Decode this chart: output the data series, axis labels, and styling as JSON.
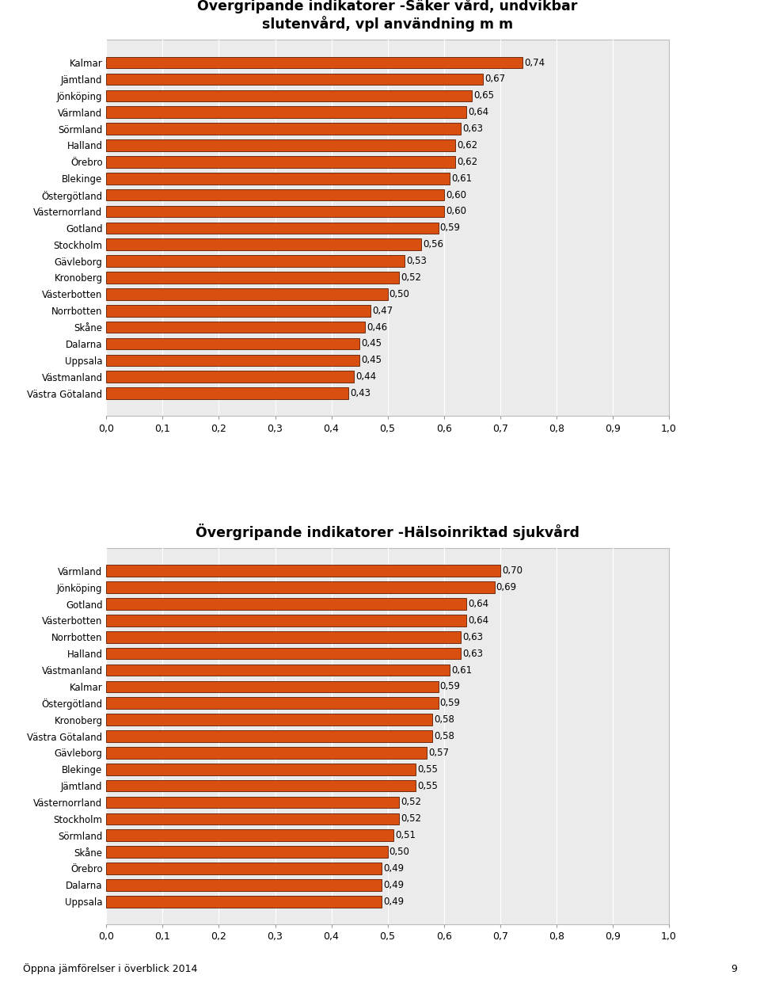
{
  "chart1": {
    "title": "Övergripande indikatorer -Säker vård, undvikbar\nslutenvård, vpl användning m m",
    "categories": [
      "Kalmar",
      "Jämtland",
      "Jönköping",
      "Värmland",
      "Sörmland",
      "Halland",
      "Örebro",
      "Blekinge",
      "Östergötland",
      "Västernorrland",
      "Gotland",
      "Stockholm",
      "Gävleborg",
      "Kronoberg",
      "Västerbotten",
      "Norrbotten",
      "Skåne",
      "Dalarna",
      "Uppsala",
      "Västmanland",
      "Västra Götaland"
    ],
    "values": [
      0.74,
      0.67,
      0.65,
      0.64,
      0.63,
      0.62,
      0.62,
      0.61,
      0.6,
      0.6,
      0.59,
      0.56,
      0.53,
      0.52,
      0.5,
      0.47,
      0.46,
      0.45,
      0.45,
      0.44,
      0.43
    ],
    "xlim": [
      0.0,
      1.0
    ],
    "xticks": [
      0.0,
      0.1,
      0.2,
      0.3,
      0.4,
      0.5,
      0.6,
      0.7,
      0.8,
      0.9,
      1.0
    ],
    "xticklabels": [
      "0,0",
      "0,1",
      "0,2",
      "0,3",
      "0,4",
      "0,5",
      "0,6",
      "0,7",
      "0,8",
      "0,9",
      "1,0"
    ]
  },
  "chart2": {
    "title": "Övergripande indikatorer -Hälsoinriktad sjukvård",
    "categories": [
      "Värmland",
      "Jönköping",
      "Gotland",
      "Västerbotten",
      "Norrbotten",
      "Halland",
      "Västmanland",
      "Kalmar",
      "Östergötland",
      "Kronoberg",
      "Västra Götaland",
      "Gävleborg",
      "Blekinge",
      "Jämtland",
      "Västernorrland",
      "Stockholm",
      "Sörmland",
      "Skåne",
      "Örebro",
      "Dalarna",
      "Uppsala"
    ],
    "values": [
      0.7,
      0.69,
      0.64,
      0.64,
      0.63,
      0.63,
      0.61,
      0.59,
      0.59,
      0.58,
      0.58,
      0.57,
      0.55,
      0.55,
      0.52,
      0.52,
      0.51,
      0.5,
      0.49,
      0.49,
      0.49
    ],
    "xlim": [
      0.0,
      1.0
    ],
    "xticks": [
      0.0,
      0.1,
      0.2,
      0.3,
      0.4,
      0.5,
      0.6,
      0.7,
      0.8,
      0.9,
      1.0
    ],
    "xticklabels": [
      "0,0",
      "0,1",
      "0,2",
      "0,3",
      "0,4",
      "0,5",
      "0,6",
      "0,7",
      "0,8",
      "0,9",
      "1,0"
    ]
  },
  "bar_color": "#D94F10",
  "bar_edge_color": "#5C1A00",
  "bar_linewidth": 0.6,
  "bg_color": "#EBEBEB",
  "panel_edge_color": "#BBBBBB",
  "grid_color": "#FFFFFF",
  "title_fontsize": 12.5,
  "label_fontsize": 8.5,
  "tick_fontsize": 9,
  "value_fontsize": 8.5,
  "footer_text": "Öppna jämförelser i överblick 2014",
  "page_number": "9"
}
